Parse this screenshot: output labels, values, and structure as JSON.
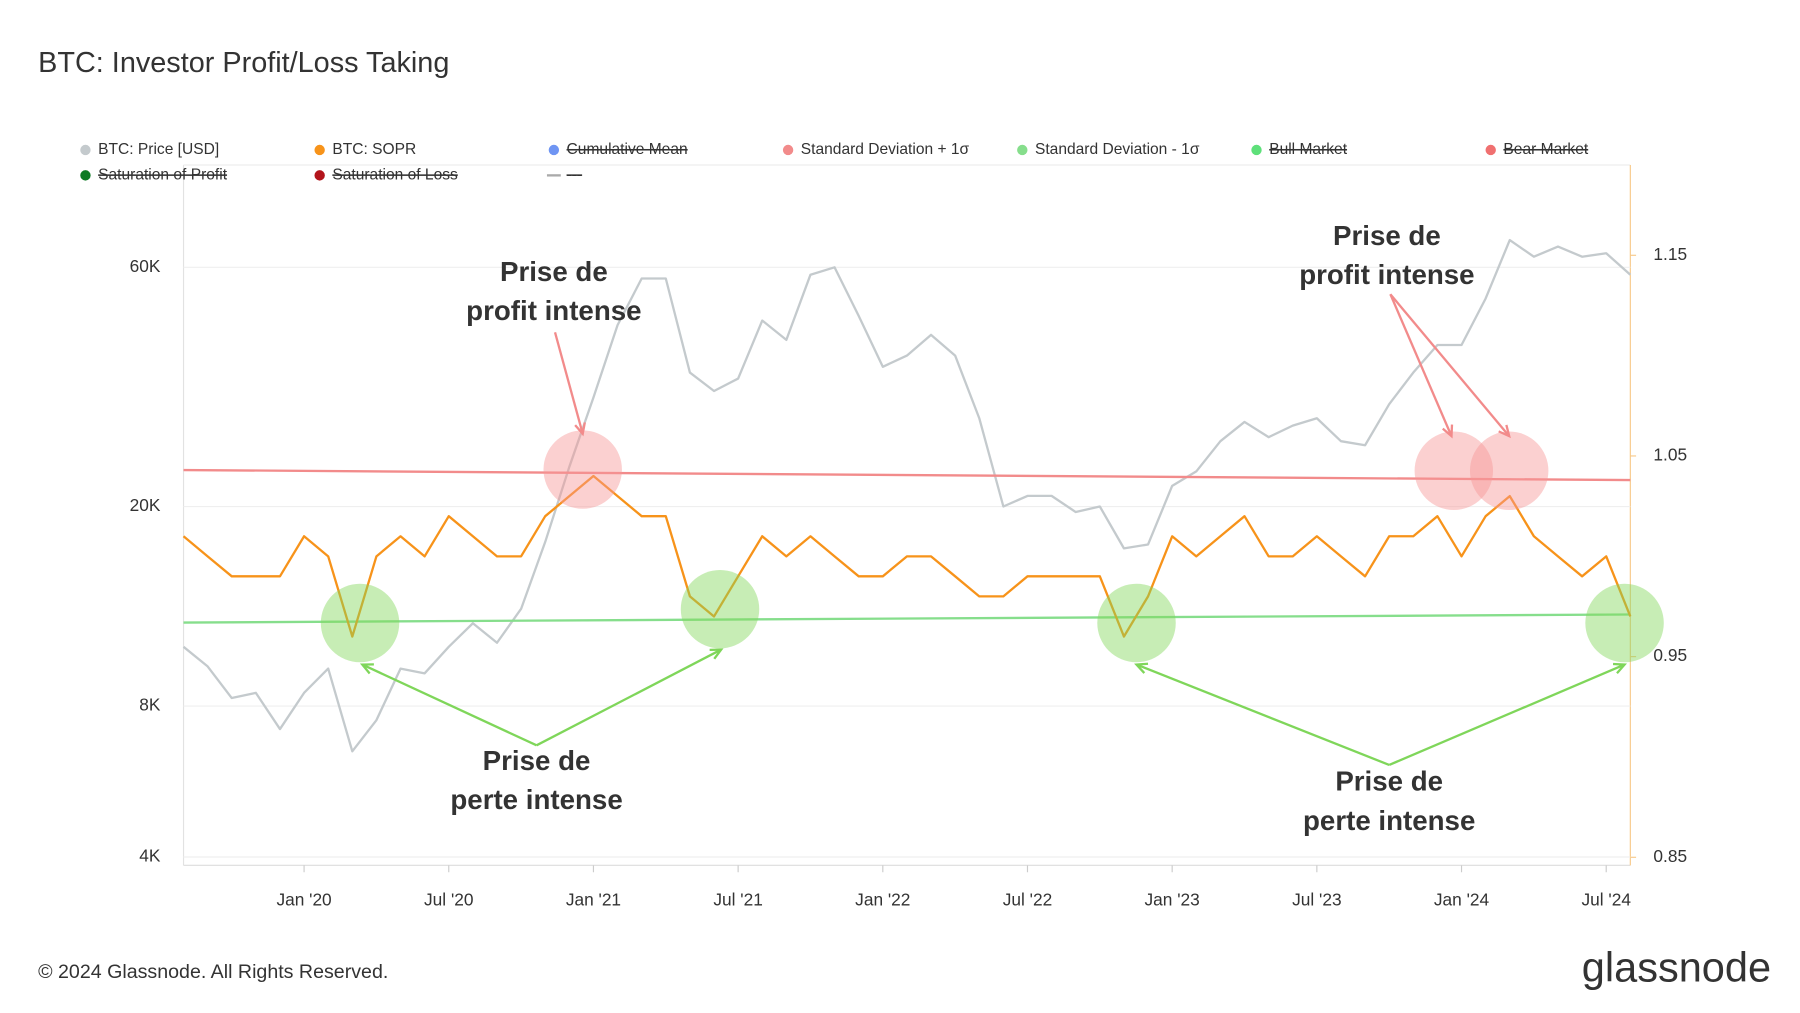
{
  "chart_data": {
    "type": "line",
    "title": "BTC: Investor Profit/Loss Taking",
    "x": [
      "2019-08",
      "2019-09",
      "2019-10",
      "2019-11",
      "2019-12",
      "2020-01",
      "2020-02",
      "2020-03",
      "2020-04",
      "2020-05",
      "2020-06",
      "2020-07",
      "2020-08",
      "2020-09",
      "2020-10",
      "2020-11",
      "2020-12",
      "2021-01",
      "2021-02",
      "2021-03",
      "2021-04",
      "2021-05",
      "2021-06",
      "2021-07",
      "2021-08",
      "2021-09",
      "2021-10",
      "2021-11",
      "2021-12",
      "2022-01",
      "2022-02",
      "2022-03",
      "2022-04",
      "2022-05",
      "2022-06",
      "2022-07",
      "2022-08",
      "2022-09",
      "2022-10",
      "2022-11",
      "2022-12",
      "2023-01",
      "2023-02",
      "2023-03",
      "2023-04",
      "2023-05",
      "2023-06",
      "2023-07",
      "2023-08",
      "2023-09",
      "2023-10",
      "2023-11",
      "2023-12",
      "2024-01",
      "2024-02",
      "2024-03",
      "2024-04",
      "2024-05",
      "2024-06",
      "2024-07",
      "2024-08"
    ],
    "xlim": [
      "2019-08",
      "2024-08"
    ],
    "xticks": [
      {
        "value": "2020-01",
        "label": "Jan '20"
      },
      {
        "value": "2020-07",
        "label": "Jul '20"
      },
      {
        "value": "2021-01",
        "label": "Jan '21"
      },
      {
        "value": "2021-07",
        "label": "Jul '21"
      },
      {
        "value": "2022-01",
        "label": "Jan '22"
      },
      {
        "value": "2022-07",
        "label": "Jul '22"
      },
      {
        "value": "2023-01",
        "label": "Jan '23"
      },
      {
        "value": "2023-07",
        "label": "Jul '23"
      },
      {
        "value": "2024-01",
        "label": "Jan '24"
      },
      {
        "value": "2024-07",
        "label": "Jul '24"
      }
    ],
    "ylim": [
      3850,
      96000
    ],
    "ylog": true,
    "yticks": [
      {
        "value": 4000,
        "label": "4K"
      },
      {
        "value": 8000,
        "label": "8K"
      },
      {
        "value": 20000,
        "label": "20K"
      },
      {
        "value": 60000,
        "label": "60K"
      }
    ],
    "y2lim": [
      0.846,
      1.195
    ],
    "y2ticks": [
      0.85,
      0.95,
      1.05,
      1.15
    ],
    "grid": true,
    "series": [
      {
        "name": "BTC: Price [USD]",
        "color": "#c4cacd",
        "values": [
          10500,
          9600,
          8300,
          8500,
          7200,
          8500,
          9500,
          6500,
          7500,
          9500,
          9300,
          10500,
          11700,
          10700,
          12500,
          17000,
          24000,
          33000,
          46000,
          57000,
          57000,
          37000,
          34000,
          36000,
          47000,
          43000,
          58000,
          60000,
          48000,
          38000,
          40000,
          44000,
          40000,
          30000,
          20000,
          21000,
          21000,
          19500,
          20000,
          16500,
          16800,
          22000,
          23500,
          27000,
          29500,
          27500,
          29000,
          30000,
          27000,
          26500,
          32000,
          37000,
          42000,
          42000,
          52000,
          68000,
          63000,
          66000,
          63000,
          64000,
          58000
        ]
      },
      {
        "name": "BTC: SOPR",
        "color": "#f7931a",
        "axis": "y2",
        "values": [
          1.01,
          1.0,
          0.99,
          0.99,
          0.99,
          1.01,
          1.0,
          0.96,
          1.0,
          1.01,
          1.0,
          1.02,
          1.01,
          1.0,
          1.0,
          1.02,
          1.03,
          1.04,
          1.03,
          1.02,
          1.02,
          0.98,
          0.97,
          0.99,
          1.01,
          1.0,
          1.01,
          1.0,
          0.99,
          0.99,
          1.0,
          1.0,
          0.99,
          0.98,
          0.98,
          0.99,
          0.99,
          0.99,
          0.99,
          0.96,
          0.98,
          1.01,
          1.0,
          1.01,
          1.02,
          1.0,
          1.0,
          1.01,
          1.0,
          0.99,
          1.01,
          1.01,
          1.02,
          1.0,
          1.02,
          1.03,
          1.01,
          1.0,
          0.99,
          1.0,
          0.97
        ]
      },
      {
        "name": "Cumulative Mean",
        "color": "#6f95f3",
        "hidden": true
      },
      {
        "name": "Standard Deviation + 1σ",
        "color": "#f28b8b",
        "axis": "y2",
        "x": [
          "2019-08",
          "2024-08"
        ],
        "values": [
          1.043,
          1.038
        ]
      },
      {
        "name": "Standard Deviation - 1σ",
        "color": "#86de8c",
        "axis": "y2",
        "x": [
          "2019-08",
          "2024-08"
        ],
        "values": [
          0.967,
          0.971
        ]
      },
      {
        "name": "Bull Market",
        "color": "#5ee07a",
        "hidden": true
      },
      {
        "name": "Bear Market",
        "color": "#f07070",
        "hidden": true
      },
      {
        "name": "Saturation of Profit",
        "color": "#0d7a23",
        "hidden": true
      },
      {
        "name": "Saturation of Loss",
        "color": "#b3141b",
        "hidden": true
      },
      {
        "name": "---",
        "color": "#aaaaaa",
        "hidden": true,
        "marker": "line"
      }
    ],
    "annotations": [
      {
        "lines": [
          "Prise de",
          "profit intense"
        ]
      },
      {
        "lines": [
          "Prise de",
          "profit intense"
        ]
      },
      {
        "lines": [
          "Prise de",
          "perte intense"
        ]
      },
      {
        "lines": [
          "Prise de",
          "perte intense"
        ]
      }
    ]
  },
  "footer": {
    "copyright": "© 2024 Glassnode. All Rights Reserved.",
    "logo": "glassnode"
  }
}
